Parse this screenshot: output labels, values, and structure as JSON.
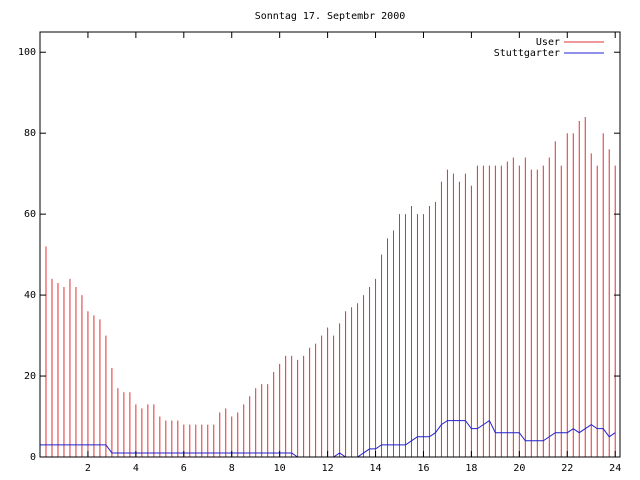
{
  "chart_data": {
    "type": "line",
    "title": "Sonntag 17. Septembr 2000",
    "x": [
      0,
      0.25,
      0.5,
      0.75,
      1,
      1.25,
      1.5,
      1.75,
      2,
      2.25,
      2.5,
      2.75,
      3,
      3.25,
      3.5,
      3.75,
      4,
      4.25,
      4.5,
      4.75,
      5,
      5.25,
      5.5,
      5.75,
      6,
      6.25,
      6.5,
      6.75,
      7,
      7.25,
      7.5,
      7.75,
      8,
      8.25,
      8.5,
      8.75,
      9,
      9.25,
      9.5,
      9.75,
      10,
      10.25,
      10.5,
      10.75,
      11,
      11.25,
      11.5,
      11.75,
      12,
      12.25,
      12.5,
      12.75,
      13,
      13.25,
      13.5,
      13.75,
      14,
      14.25,
      14.5,
      14.75,
      15,
      15.25,
      15.5,
      15.75,
      16,
      16.25,
      16.5,
      16.75,
      17,
      17.25,
      17.5,
      17.75,
      18,
      18.25,
      18.5,
      18.75,
      19,
      19.25,
      19.5,
      19.75,
      20,
      20.25,
      20.5,
      20.75,
      21,
      21.25,
      21.5,
      21.75,
      22,
      22.25,
      22.5,
      22.75,
      23,
      23.25,
      23.5,
      23.75,
      24
    ],
    "series": [
      {
        "name": "User",
        "color": "#e03030",
        "style": "impulses",
        "values": [
          58,
          52,
          44,
          43,
          42,
          44,
          42,
          40,
          36,
          35,
          34,
          30,
          22,
          17,
          16,
          16,
          13,
          12,
          13,
          13,
          10,
          9,
          9,
          9,
          8,
          8,
          8,
          8,
          8,
          8,
          11,
          12,
          10,
          11,
          13,
          15,
          17,
          18,
          18,
          21,
          23,
          25,
          25,
          24,
          25,
          27,
          28,
          30,
          32,
          30,
          33,
          36,
          37,
          38,
          40,
          42,
          44,
          50,
          54,
          56,
          60,
          60,
          62,
          60,
          60,
          62,
          63,
          68,
          71,
          70,
          68,
          70,
          67,
          72,
          72,
          72,
          72,
          72,
          73,
          74,
          72,
          74,
          71,
          71,
          72,
          74,
          78,
          72,
          80,
          80,
          83,
          84,
          75,
          72,
          80,
          76,
          72
        ]
      },
      {
        "name": "Stuttgarter",
        "color": "#2020d0",
        "style": "lines",
        "values": [
          3,
          3,
          3,
          3,
          3,
          3,
          3,
          3,
          3,
          3,
          3,
          3,
          1,
          1,
          1,
          1,
          1,
          1,
          1,
          1,
          1,
          1,
          1,
          1,
          1,
          1,
          1,
          1,
          1,
          1,
          1,
          1,
          1,
          1,
          1,
          1,
          1,
          1,
          1,
          1,
          1,
          1,
          1,
          0,
          0,
          0,
          0,
          0,
          0,
          0,
          1,
          0,
          0,
          0,
          1,
          2,
          2,
          3,
          3,
          3,
          3,
          3,
          4,
          5,
          5,
          5,
          6,
          8,
          9,
          9,
          9,
          9,
          7,
          7,
          8,
          9,
          6,
          6,
          6,
          6,
          6,
          4,
          4,
          4,
          4,
          5,
          6,
          6,
          6,
          7,
          6,
          7,
          8,
          7,
          7,
          5,
          6
        ]
      }
    ],
    "xlim": [
      0,
      24.2
    ],
    "xticks": [
      2,
      4,
      6,
      8,
      10,
      12,
      14,
      16,
      18,
      20,
      22,
      24
    ],
    "ylim": [
      0,
      105
    ],
    "yticks": [
      0,
      20,
      40,
      60,
      80,
      100
    ],
    "legend": "top-right"
  }
}
